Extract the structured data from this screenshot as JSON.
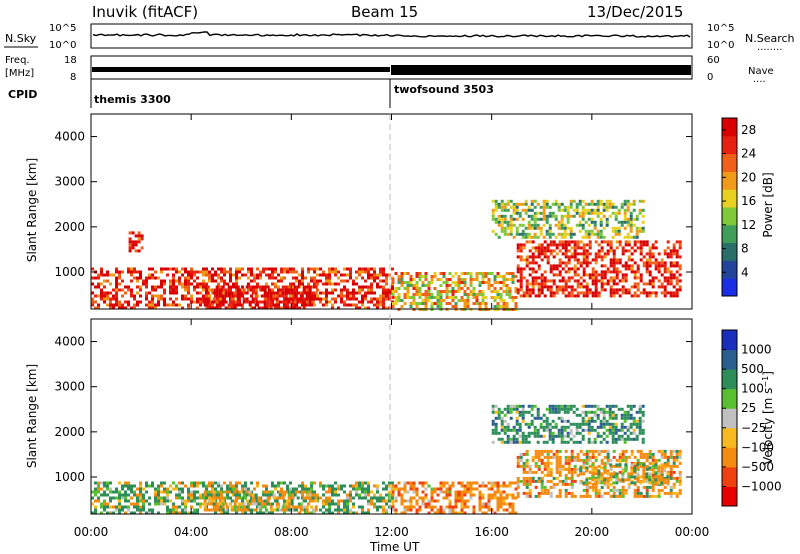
{
  "header": {
    "station": "Inuvik (fitACF)",
    "beam": "Beam 15",
    "date": "13/Dec/2015"
  },
  "sky_panel": {
    "left_label": "N.Sky",
    "left_ticks": [
      "10^5",
      "10^0"
    ],
    "right_ticks": [
      "10^5",
      "10^0"
    ],
    "right_label": "N.Search",
    "right_key": "........"
  },
  "freq_panel": {
    "left_label_top": "Freq.",
    "left_label_bottom": "[MHz]",
    "left_ticks": [
      "18",
      "8"
    ],
    "right_ticks": [
      "60",
      "0"
    ],
    "right_label": "Nave",
    "right_key": "...."
  },
  "cpid": {
    "label": "CPID",
    "modes": [
      {
        "name": "themis 3300",
        "start_hour": 0
      },
      {
        "name": "twofsound 3503",
        "start_hour": 12
      }
    ]
  },
  "colors": {
    "power_scale": [
      "#1a2ee6",
      "#22449a",
      "#2a6e6a",
      "#3e9e5a",
      "#7ec83a",
      "#e8d020",
      "#f09a18",
      "#f06018",
      "#e82010",
      "#d80000"
    ],
    "velocity_scale": [
      "#e80000",
      "#f04010",
      "#f48a10",
      "#f8b820",
      "#c0c0c0",
      "#58c030",
      "#2e8e5a",
      "#2a5e8e",
      "#1a2ebe"
    ]
  },
  "chart_data": [
    {
      "type": "heatmap",
      "title": "",
      "xlabel": "",
      "ylabel": "Slant Range [km]",
      "xlim": [
        0,
        24
      ],
      "ylim": [
        180,
        4500
      ],
      "x_ticks": [
        "00:00",
        "04:00",
        "08:00",
        "12:00",
        "16:00",
        "20:00",
        "00:00"
      ],
      "y_ticks": [
        1000,
        2000,
        3000,
        4000
      ],
      "colorbar": {
        "label": "Power [dB]",
        "ticks": [
          4,
          8,
          12,
          16,
          20,
          24,
          28
        ],
        "range": [
          0,
          30
        ]
      },
      "echo_regions": [
        {
          "t_start": 0.0,
          "t_end": 12.0,
          "range_low": 200,
          "range_high": 1100,
          "value": 26
        },
        {
          "t_start": 4.5,
          "t_end": 9.0,
          "range_low": 200,
          "range_high": 700,
          "value": 29
        },
        {
          "t_start": 1.5,
          "t_end": 2.0,
          "range_low": 1500,
          "range_high": 1900,
          "value": 27
        },
        {
          "t_start": 12.0,
          "t_end": 17.0,
          "range_low": 200,
          "range_high": 1000,
          "value": 18
        },
        {
          "t_start": 17.0,
          "t_end": 23.5,
          "range_low": 500,
          "range_high": 1700,
          "value": 27
        },
        {
          "t_start": 16.0,
          "t_end": 22.0,
          "range_low": 1800,
          "range_high": 2600,
          "value": 14
        }
      ]
    },
    {
      "type": "heatmap",
      "title": "",
      "xlabel": "Time UT",
      "ylabel": "Slant Range [km]",
      "xlim": [
        0,
        24
      ],
      "ylim": [
        180,
        4500
      ],
      "x_ticks": [
        "00:00",
        "04:00",
        "08:00",
        "12:00",
        "16:00",
        "20:00",
        "00:00"
      ],
      "y_ticks": [
        1000,
        2000,
        3000,
        4000
      ],
      "colorbar": {
        "label": "Velocity [m s⁻¹]",
        "ticks": [
          1000,
          500,
          100,
          25,
          -25,
          -100,
          -500,
          -1000
        ]
      },
      "echo_regions": [
        {
          "t_start": 0.0,
          "t_end": 12.0,
          "range_low": 200,
          "range_high": 900,
          "value": 100
        },
        {
          "t_start": 4.5,
          "t_end": 9.0,
          "range_low": 300,
          "range_high": 700,
          "value": -100
        },
        {
          "t_start": 12.0,
          "t_end": 17.0,
          "range_low": 200,
          "range_high": 900,
          "value": -300
        },
        {
          "t_start": 17.0,
          "t_end": 23.5,
          "range_low": 600,
          "range_high": 1600,
          "value": -200
        },
        {
          "t_start": 19.5,
          "t_end": 23.0,
          "range_low": 900,
          "range_high": 1300,
          "value": 0
        },
        {
          "t_start": 16.0,
          "t_end": 22.0,
          "range_low": 1800,
          "range_high": 2600,
          "value": 300
        }
      ]
    }
  ],
  "velocity_tick_labels": [
    "1000",
    "500",
    "100",
    "25",
    "−25",
    "−100",
    "−500",
    "−1000"
  ],
  "velocity_unit_label": "Velocity [m s",
  "velocity_unit_sup": "−1",
  "velocity_unit_close": "]"
}
